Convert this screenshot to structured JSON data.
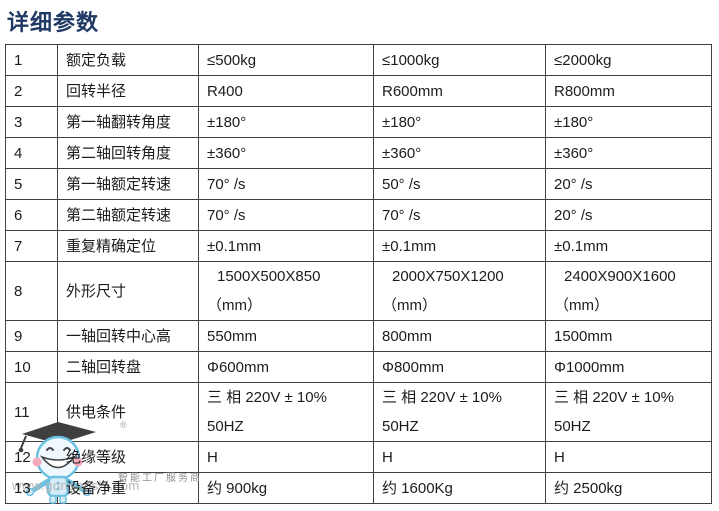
{
  "title": "详细参数",
  "table": {
    "rows": [
      {
        "no": "1",
        "param": "额定负载",
        "values": [
          "≤500kg",
          "≤1000kg",
          "≤2000kg"
        ]
      },
      {
        "no": "2",
        "param": "回转半径",
        "values": [
          "R400",
          "R600mm",
          "R800mm"
        ]
      },
      {
        "no": "3",
        "param": "第一轴翻转角度",
        "values": [
          "±180°",
          "±180°",
          "±180°"
        ]
      },
      {
        "no": "4",
        "param": "第二轴回转角度",
        "values": [
          "±360°",
          "±360°",
          "±360°"
        ]
      },
      {
        "no": "5",
        "param": "第一轴额定转速",
        "values": [
          "70° /s",
          "50° /s",
          "20° /s"
        ]
      },
      {
        "no": "6",
        "param": "第二轴额定转速",
        "values": [
          "70° /s",
          "70° /s",
          "20° /s"
        ]
      },
      {
        "no": "7",
        "param": "重复精确定位",
        "values": [
          "±0.1mm",
          "±0.1mm",
          "±0.1mm"
        ]
      },
      {
        "no": "8",
        "param": "外形尺寸",
        "values": [
          "1500X500X850\n（mm）",
          "2000X750X1200\n（mm）",
          "2400X900X1600\n（mm）"
        ],
        "dim": true
      },
      {
        "no": "9",
        "param": "一轴回转中心高",
        "values": [
          "550mm",
          "800mm",
          "1500mm"
        ]
      },
      {
        "no": "10",
        "param": "二轴回转盘",
        "values": [
          "Φ600mm",
          "Φ800mm",
          "Φ1000mm"
        ]
      },
      {
        "no": "11",
        "param": "供电条件",
        "values": [
          "三 相 220V ± 10%\n50HZ",
          "三 相 220V ± 10%\n50HZ",
          "三 相 220V ± 10%\n50HZ"
        ]
      },
      {
        "no": "12",
        "param": "绝缘等级",
        "values": [
          "H",
          "H",
          "H"
        ]
      },
      {
        "no": "13",
        "param": "设备净重",
        "values": [
          "约 900kg",
          "约 1600Kg",
          "约 2500kg"
        ]
      }
    ]
  },
  "watermark": {
    "brand": "智能工厂服务商",
    "url": "www.gongboshi.com",
    "registered": "®",
    "mascot": "robot-mascot-with-graduation-cap"
  },
  "colors": {
    "title": "#1f3864",
    "border": "#404040",
    "text": "#1c1c1c",
    "watermark_brand": "#8f8f8f",
    "watermark_url": "#b5b5b5",
    "mascot_blue": "#6cc0e0",
    "mascot_fill": "#d6edf8",
    "mascot_cap": "#3f3f3f",
    "mascot_cheek": "#f6a8bc"
  }
}
